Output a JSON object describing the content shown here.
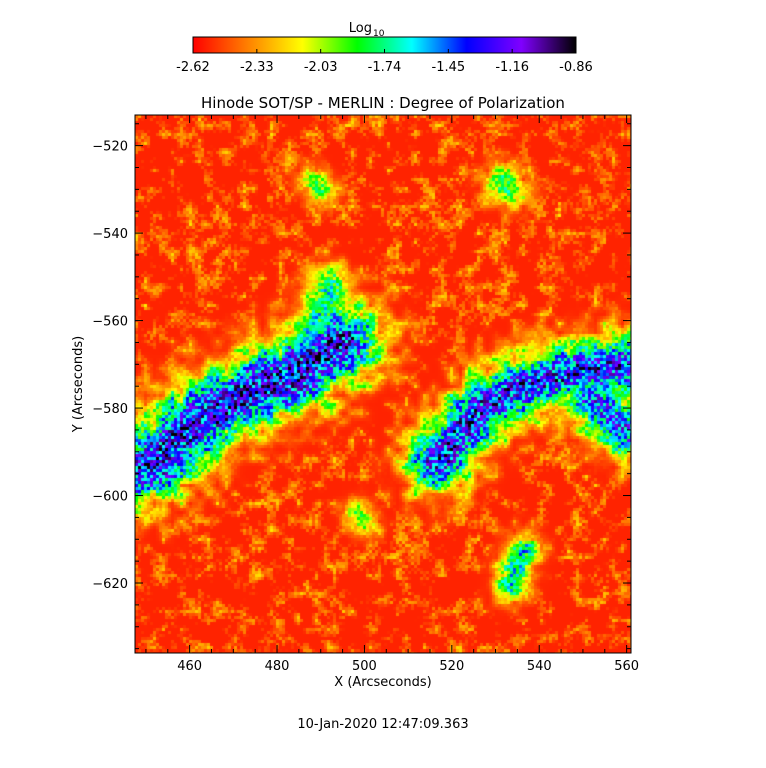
{
  "colorbar": {
    "label_main": "Log",
    "label_sub": "10",
    "tick_labels": [
      "-2.62",
      "-2.33",
      "-2.03",
      "-1.74",
      "-1.45",
      "-1.16",
      "-0.86"
    ],
    "colormap": [
      "#ff0000",
      "#ff8000",
      "#ffff00",
      "#00ff00",
      "#00ffff",
      "#0000ff",
      "#8000ff",
      "#000000"
    ]
  },
  "chart_data": {
    "type": "heatmap",
    "title": "Hinode SOT/SP - MERLIN : Degree of Polarization",
    "xlabel": "X (Arcseconds)",
    "ylabel": "Y (Arcseconds)",
    "xlim": [
      447.5,
      561.0
    ],
    "ylim": [
      -636.0,
      -513.0
    ],
    "x_ticks": [
      460,
      480,
      500,
      520,
      540,
      560
    ],
    "y_ticks": [
      -520,
      -540,
      -560,
      -580,
      -600,
      -620
    ],
    "x_tick_labels": [
      "460",
      "480",
      "500",
      "520",
      "540",
      "560"
    ],
    "y_tick_labels": [
      "−520",
      "−540",
      "−560",
      "−580",
      "−600",
      "−620"
    ],
    "value_range": [
      -2.62,
      -0.86
    ],
    "value_scale": "log10",
    "background_level": -2.55,
    "features": [
      {
        "name": "left polarization band",
        "path": [
          [
            450,
            -593
          ],
          [
            458,
            -586
          ],
          [
            466,
            -580
          ],
          [
            474,
            -576
          ],
          [
            482,
            -573
          ],
          [
            490,
            -568
          ],
          [
            495,
            -565
          ]
        ],
        "peak": -1.05,
        "width": 5.5
      },
      {
        "name": "left band north extension",
        "path": [
          [
            486,
            -566
          ],
          [
            488,
            -561
          ],
          [
            490,
            -557
          ],
          [
            492,
            -552
          ]
        ],
        "peak": -1.6,
        "width": 3.0
      },
      {
        "name": "right polarization band",
        "path": [
          [
            516,
            -592
          ],
          [
            522,
            -585
          ],
          [
            528,
            -579
          ],
          [
            535,
            -575
          ],
          [
            542,
            -573
          ],
          [
            550,
            -571
          ],
          [
            558,
            -570
          ]
        ],
        "peak": -1.1,
        "width": 4.5
      },
      {
        "name": "right band south extension",
        "path": [
          [
            552,
            -578
          ],
          [
            556,
            -582
          ],
          [
            560,
            -585
          ]
        ],
        "peak": -1.25,
        "width": 4.0
      },
      {
        "name": "small patch",
        "path": [
          [
            531,
            -528
          ],
          [
            533,
            -530
          ]
        ],
        "peak": -1.75,
        "width": 2.5
      },
      {
        "name": "small patch",
        "path": [
          [
            536,
            -612
          ],
          [
            533,
            -620
          ]
        ],
        "peak": -1.55,
        "width": 2.5
      },
      {
        "name": "small patch",
        "path": [
          [
            488,
            -528
          ],
          [
            490,
            -530
          ]
        ],
        "peak": -1.8,
        "width": 2.0
      },
      {
        "name": "small patch",
        "path": [
          [
            498,
            -603
          ],
          [
            500,
            -606
          ]
        ],
        "peak": -1.9,
        "width": 2.0
      }
    ]
  },
  "footer": {
    "timestamp": "10-Jan-2020 12:47:09.363"
  }
}
